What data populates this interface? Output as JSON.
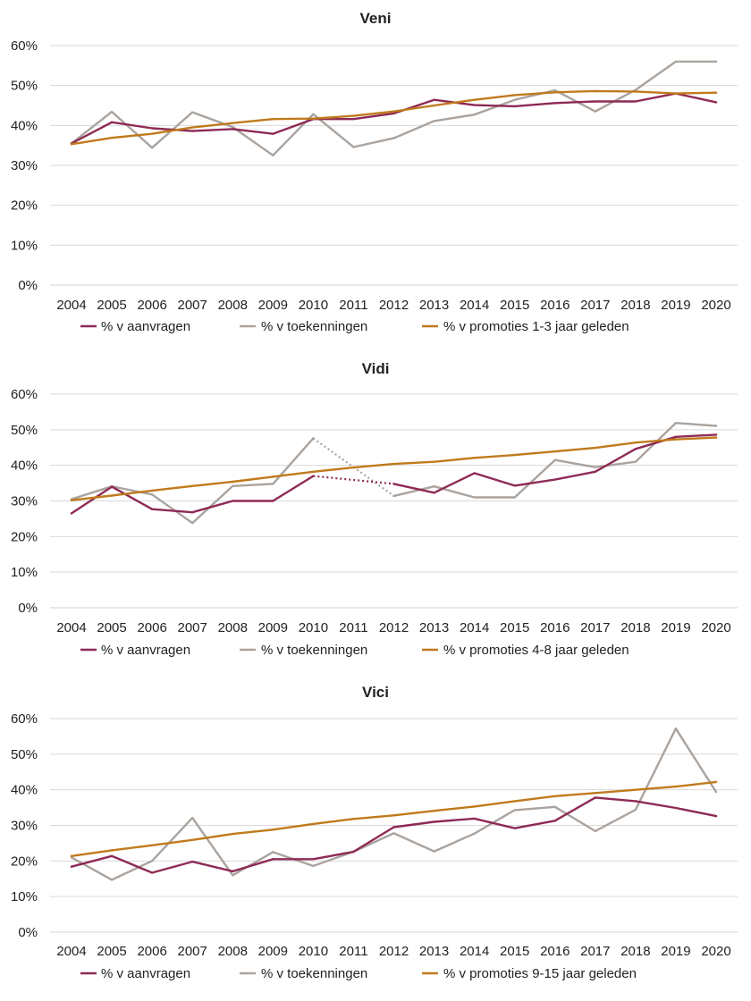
{
  "colors": {
    "aanvragen": "#8e2a55",
    "toekenningen": "#aaa39e",
    "promoties": "#c07a1c",
    "grid": "#d9d9d9"
  },
  "chart_data": [
    {
      "type": "line",
      "title": "Veni",
      "categories": [
        "2004",
        "2005",
        "2006",
        "2007",
        "2008",
        "2009",
        "2010",
        "2011",
        "2012",
        "2013",
        "2014",
        "2015",
        "2016",
        "2017",
        "2018",
        "2019",
        "2020"
      ],
      "ylim": [
        0,
        60
      ],
      "yticks": [
        "0%",
        "10%",
        "20%",
        "30%",
        "40%",
        "50%",
        "60%"
      ],
      "grid": true,
      "legend_position": "bottom",
      "series": [
        {
          "name": "% v aanvragen",
          "color_key": "aanvragen",
          "values": [
            35.5,
            40.8,
            39.3,
            38.6,
            39.1,
            37.9,
            41.6,
            41.6,
            43.0,
            46.4,
            45.1,
            44.8,
            45.6,
            46.0,
            46.0,
            48.0,
            45.8
          ]
        },
        {
          "name": "% v toekenningen",
          "color_key": "toekenningen",
          "values": [
            35.5,
            43.4,
            34.4,
            43.3,
            39.6,
            32.5,
            42.8,
            34.6,
            36.8,
            41.1,
            42.7,
            46.4,
            48.8,
            43.5,
            48.9,
            56.0,
            56.0
          ]
        },
        {
          "name": "% v promoties 1-3 jaar geleden",
          "color_key": "promoties",
          "values": [
            35.3,
            36.9,
            37.9,
            39.5,
            40.6,
            41.6,
            41.7,
            42.4,
            43.5,
            45.0,
            46.4,
            47.6,
            48.3,
            48.6,
            48.5,
            48.0,
            48.2
          ]
        }
      ]
    },
    {
      "type": "line",
      "title": "Vidi",
      "categories": [
        "2004",
        "2005",
        "2006",
        "2007",
        "2008",
        "2009",
        "2010",
        "2011",
        "2012",
        "2013",
        "2014",
        "2015",
        "2016",
        "2017",
        "2018",
        "2019",
        "2020"
      ],
      "ylim": [
        0,
        60
      ],
      "yticks": [
        "0%",
        "10%",
        "20%",
        "30%",
        "40%",
        "50%",
        "60%"
      ],
      "grid": true,
      "legend_position": "bottom",
      "dotted_gap_after": "2010",
      "series": [
        {
          "name": "% v aanvragen",
          "color_key": "aanvragen",
          "values": [
            26.5,
            34.0,
            27.7,
            26.8,
            30.0,
            30.0,
            37.0,
            null,
            34.8,
            32.3,
            37.8,
            34.3,
            36.0,
            38.2,
            44.6,
            48.0,
            48.6
          ]
        },
        {
          "name": "% v toekenningen",
          "color_key": "toekenningen",
          "values": [
            30.5,
            34.1,
            31.8,
            23.8,
            34.2,
            34.8,
            47.6,
            null,
            31.4,
            34.1,
            31.0,
            31.0,
            41.5,
            39.5,
            41.0,
            51.9,
            51.1
          ]
        },
        {
          "name": "% v promoties 4-8 jaar geleden",
          "color_key": "promoties",
          "values": [
            30.2,
            31.5,
            32.9,
            34.2,
            35.4,
            36.8,
            38.2,
            39.4,
            40.4,
            41.0,
            42.1,
            42.9,
            43.9,
            44.9,
            46.4,
            47.3,
            47.8
          ]
        }
      ]
    },
    {
      "type": "line",
      "title": "Vici",
      "categories": [
        "2004",
        "2005",
        "2006",
        "2007",
        "2008",
        "2009",
        "2010",
        "2011",
        "2012",
        "2013",
        "2014",
        "2015",
        "2016",
        "2017",
        "2018",
        "2019",
        "2020"
      ],
      "ylim": [
        0,
        60
      ],
      "yticks": [
        "0%",
        "10%",
        "20%",
        "30%",
        "40%",
        "50%",
        "60%"
      ],
      "grid": true,
      "legend_position": "bottom",
      "series": [
        {
          "name": "% v aanvragen",
          "color_key": "aanvragen",
          "values": [
            18.4,
            21.4,
            16.7,
            19.8,
            17.1,
            20.5,
            20.5,
            22.6,
            29.5,
            31.0,
            31.9,
            29.2,
            31.3,
            37.8,
            36.8,
            34.9,
            32.6
          ]
        },
        {
          "name": "% v toekenningen",
          "color_key": "toekenningen",
          "values": [
            21.0,
            14.7,
            20.0,
            32.1,
            16.0,
            22.5,
            18.6,
            22.6,
            27.8,
            22.7,
            27.7,
            34.3,
            35.2,
            28.4,
            34.4,
            57.2,
            39.4
          ]
        },
        {
          "name": "% v promoties 9-15 jaar geleden",
          "color_key": "promoties",
          "values": [
            21.4,
            23.0,
            24.4,
            25.9,
            27.6,
            28.8,
            30.4,
            31.8,
            32.8,
            34.1,
            35.3,
            36.8,
            38.2,
            39.1,
            40.0,
            40.9,
            42.2
          ]
        }
      ]
    }
  ]
}
